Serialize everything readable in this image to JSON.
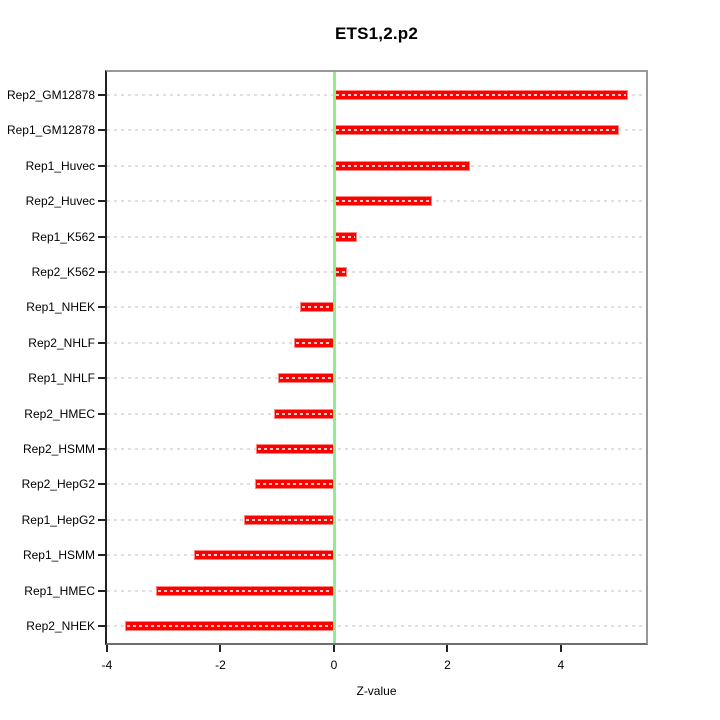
{
  "chart_data": {
    "type": "bar",
    "orientation": "horizontal",
    "title": "ETS1,2.p2",
    "xlabel": "Z-value",
    "ylabel": "",
    "categories": [
      "Rep2_GM12878",
      "Rep1_GM12878",
      "Rep1_Huvec",
      "Rep2_Huvec",
      "Rep1_K562",
      "Rep2_K562",
      "Rep1_NHEK",
      "Rep2_NHLF",
      "Rep1_NHLF",
      "Rep2_HMEC",
      "Rep2_HSMM",
      "Rep2_HepG2",
      "Rep1_HepG2",
      "Rep1_HSMM",
      "Rep1_HMEC",
      "Rep2_NHEK"
    ],
    "values": [
      5.18,
      5.03,
      2.4,
      1.73,
      0.4,
      0.23,
      -0.6,
      -0.7,
      -0.98,
      -1.05,
      -1.38,
      -1.4,
      -1.58,
      -2.47,
      -3.14,
      -3.68
    ],
    "xlim": [
      -4,
      5.5
    ],
    "x_ticks": [
      -4,
      -2,
      0,
      2,
      4
    ],
    "grid": "dotted horizontal gridlines on",
    "legend": "none",
    "zero_line": 0,
    "colors": {
      "bar": "#FF0000",
      "bar_border": "#FF8585",
      "bar_center_dash": "#FFC6C6",
      "zero_line": "#90EE90",
      "gridline": "#DFDFDF",
      "box_border": "#989898",
      "axis": "#222222",
      "text": "#000000",
      "background": "#FFFFFF"
    }
  }
}
